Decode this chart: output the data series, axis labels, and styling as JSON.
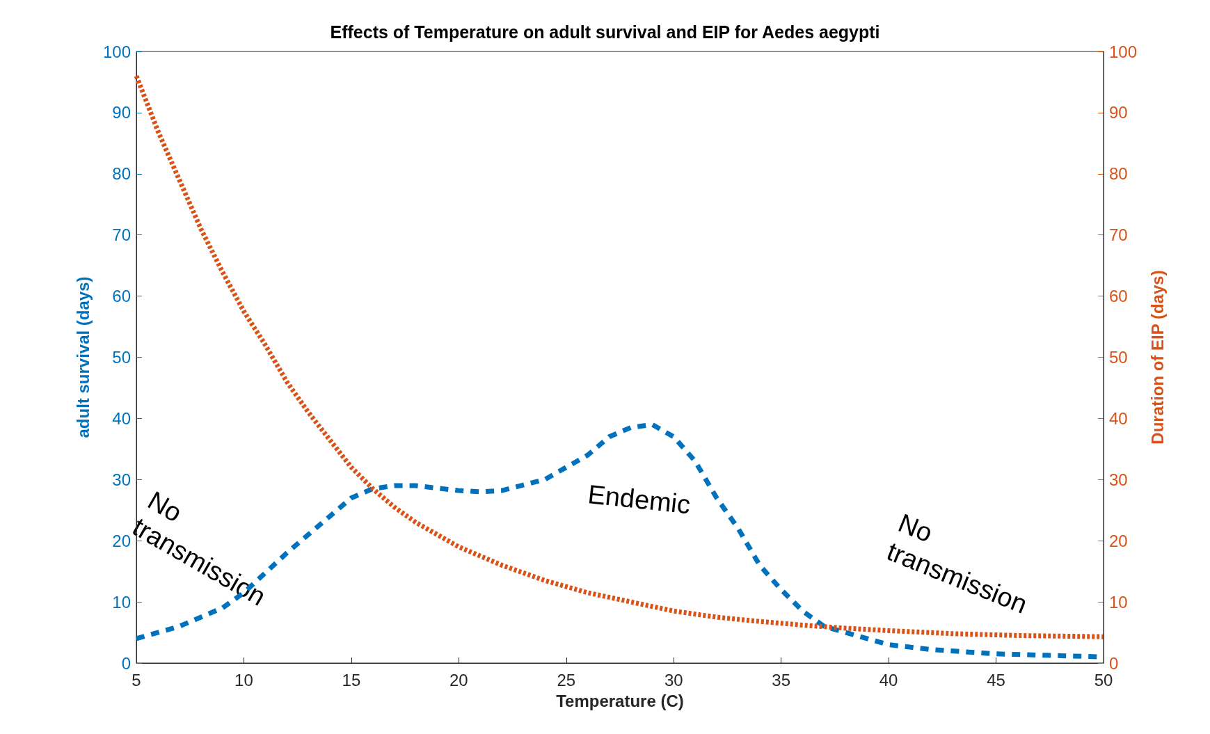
{
  "chart_data": {
    "type": "line",
    "title": "Effects of Temperature on adult survival and EIP for Aedes aegypti",
    "xlabel": "Temperature (C)",
    "ylabel": "adult survival (days)",
    "y2label": "Duration of EIP (days)",
    "xlim": [
      5,
      50
    ],
    "xticks": [
      5,
      10,
      15,
      20,
      25,
      30,
      35,
      40,
      45,
      50
    ],
    "ylim": [
      0,
      100
    ],
    "yticks": [
      0,
      10,
      20,
      30,
      40,
      50,
      60,
      70,
      80,
      90,
      100
    ],
    "y2lim": [
      0,
      100
    ],
    "y2ticks": [
      0,
      10,
      20,
      30,
      40,
      50,
      60,
      70,
      80,
      90,
      100
    ],
    "grid": false,
    "marker": "none",
    "series": [
      {
        "color": "#0072bd",
        "line_style": "dashed",
        "x": [
          5,
          7,
          9,
          10,
          12,
          14,
          15,
          16,
          17,
          18,
          20,
          21,
          22,
          24,
          26,
          27,
          28,
          29,
          30,
          31,
          32,
          33,
          34,
          35,
          36,
          37,
          38,
          40,
          42,
          45,
          50
        ],
        "values": [
          4,
          6,
          9,
          11.5,
          18,
          24,
          27,
          28.5,
          29,
          29,
          28.2,
          28,
          28.2,
          30,
          34,
          37,
          38.5,
          39,
          37,
          33,
          27,
          22,
          16,
          12,
          8.5,
          6,
          5,
          3,
          2.2,
          1.5,
          1
        ]
      },
      {
        "color": "#d95319",
        "line_style": "dotted",
        "axis": "y2",
        "x": [
          5,
          6,
          7,
          8,
          9,
          10,
          11,
          12,
          13,
          14,
          15,
          16,
          17,
          18,
          20,
          22,
          24,
          26,
          28,
          30,
          32,
          34,
          36,
          38,
          40,
          43,
          46,
          50
        ],
        "values": [
          96,
          87,
          79,
          71,
          64,
          57.5,
          52,
          46,
          41,
          36.5,
          32,
          28.5,
          25.5,
          23,
          19,
          16,
          13.5,
          11.5,
          10,
          8.5,
          7.5,
          6.8,
          6.2,
          5.7,
          5.3,
          4.8,
          4.5,
          4.3
        ]
      }
    ],
    "annotations": [
      "No\ntransmission",
      "Endemic",
      "No\ntransmission"
    ]
  }
}
